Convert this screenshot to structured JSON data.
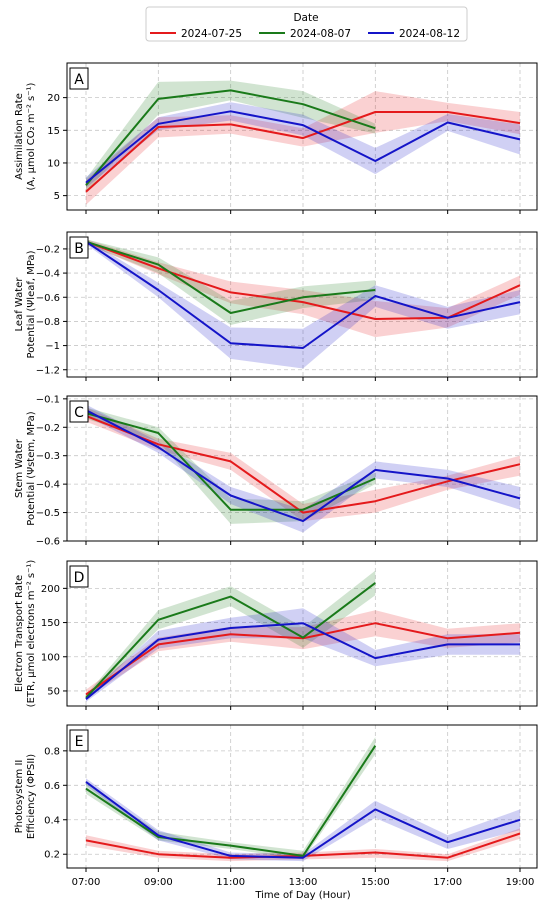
{
  "legend": {
    "title": "Date",
    "entries": [
      {
        "label": "2024-07-25",
        "color": "#e41a1c"
      },
      {
        "label": "2024-08-07",
        "color": "#1a7a1a"
      },
      {
        "label": "2024-08-12",
        "color": "#1414c8"
      }
    ]
  },
  "xlabel": "Time of Day (Hour)",
  "chart_data": [
    {
      "type": "line",
      "panel": "A",
      "ylabel": [
        "Assimilation Rate",
        "(A, μmol CO₂ m⁻² s⁻¹)"
      ],
      "x": [
        "07:00",
        "09:00",
        "11:00",
        "13:00",
        "15:00",
        "17:00",
        "19:00"
      ],
      "ylim": [
        2.8,
        25.3
      ],
      "yticks": [
        5,
        10,
        15,
        20
      ],
      "series": [
        {
          "name": "2024-07-25",
          "color": "#e41a1c",
          "values": [
            5.6,
            15.5,
            15.9,
            13.8,
            17.8,
            17.8,
            16.1
          ],
          "lower": [
            3.6,
            13.9,
            14.5,
            12.5,
            14.6,
            16.4,
            14.4
          ],
          "upper": [
            7.4,
            17.0,
            17.3,
            15.3,
            21.0,
            19.2,
            17.8
          ]
        },
        {
          "name": "2024-08-07",
          "color": "#1a7a1a",
          "values": [
            6.6,
            19.8,
            21.1,
            19.0,
            15.3,
            null,
            null
          ],
          "lower": [
            5.6,
            17.4,
            19.6,
            16.9,
            14.5,
            null,
            null
          ],
          "upper": [
            7.6,
            22.4,
            22.6,
            21.0,
            16.0,
            null,
            null
          ]
        },
        {
          "name": "2024-08-12",
          "color": "#1414c8",
          "values": [
            7.0,
            16.0,
            17.9,
            15.8,
            10.3,
            16.2,
            13.6
          ],
          "lower": [
            6.2,
            15.0,
            16.5,
            14.2,
            8.3,
            14.9,
            11.3
          ],
          "upper": [
            7.8,
            17.0,
            19.3,
            17.4,
            12.3,
            17.5,
            15.9
          ]
        }
      ]
    },
    {
      "type": "line",
      "panel": "B",
      "ylabel": [
        "Leaf Water",
        "Potential (Ψleaf, MPa)"
      ],
      "x": [
        "07:00",
        "09:00",
        "11:00",
        "13:00",
        "15:00",
        "17:00",
        "19:00"
      ],
      "ylim": [
        -1.26,
        -0.06
      ],
      "yticks": [
        -1.2,
        -1.0,
        -0.8,
        -0.6,
        -0.4,
        -0.2
      ],
      "series": [
        {
          "name": "2024-07-25",
          "color": "#e41a1c",
          "values": [
            -0.14,
            -0.36,
            -0.56,
            -0.64,
            -0.78,
            -0.77,
            -0.5
          ],
          "lower": [
            -0.16,
            -0.41,
            -0.65,
            -0.74,
            -0.93,
            -0.85,
            -0.58
          ],
          "upper": [
            -0.12,
            -0.31,
            -0.47,
            -0.54,
            -0.63,
            -0.69,
            -0.42
          ]
        },
        {
          "name": "2024-08-07",
          "color": "#1a7a1a",
          "values": [
            -0.14,
            -0.33,
            -0.73,
            -0.6,
            -0.54,
            null,
            null
          ],
          "lower": [
            -0.16,
            -0.4,
            -0.83,
            -0.69,
            -0.62,
            null,
            null
          ],
          "upper": [
            -0.12,
            -0.27,
            -0.63,
            -0.51,
            -0.46,
            null,
            null
          ]
        },
        {
          "name": "2024-08-12",
          "color": "#1414c8",
          "values": [
            -0.14,
            -0.54,
            -0.98,
            -1.02,
            -0.59,
            -0.77,
            -0.64
          ],
          "lower": [
            -0.16,
            -0.6,
            -1.11,
            -1.19,
            -0.68,
            -0.86,
            -0.74
          ],
          "upper": [
            -0.12,
            -0.48,
            -0.85,
            -0.86,
            -0.5,
            -0.68,
            -0.54
          ]
        }
      ]
    },
    {
      "type": "line",
      "panel": "C",
      "ylabel": [
        "Stem Water",
        "Potential (Ψstem, MPa)"
      ],
      "x": [
        "07:00",
        "09:00",
        "11:00",
        "13:00",
        "15:00",
        "17:00",
        "19:00"
      ],
      "ylim": [
        -0.6,
        -0.09
      ],
      "yticks": [
        -0.6,
        -0.5,
        -0.4,
        -0.3,
        -0.2,
        -0.1
      ],
      "series": [
        {
          "name": "2024-07-25",
          "color": "#e41a1c",
          "values": [
            -0.16,
            -0.26,
            -0.32,
            -0.5,
            -0.46,
            -0.39,
            -0.33
          ],
          "lower": [
            -0.18,
            -0.28,
            -0.35,
            -0.53,
            -0.5,
            -0.42,
            -0.37
          ],
          "upper": [
            -0.13,
            -0.24,
            -0.29,
            -0.47,
            -0.42,
            -0.37,
            -0.3
          ]
        },
        {
          "name": "2024-08-07",
          "color": "#1a7a1a",
          "values": [
            -0.15,
            -0.22,
            -0.49,
            -0.49,
            -0.38,
            null,
            null
          ],
          "lower": [
            -0.17,
            -0.25,
            -0.54,
            -0.53,
            -0.4,
            null,
            null
          ],
          "upper": [
            -0.13,
            -0.2,
            -0.45,
            -0.46,
            -0.36,
            null,
            null
          ]
        },
        {
          "name": "2024-08-12",
          "color": "#1414c8",
          "values": [
            -0.14,
            -0.27,
            -0.44,
            -0.53,
            -0.35,
            -0.38,
            -0.45
          ],
          "lower": [
            -0.16,
            -0.29,
            -0.47,
            -0.57,
            -0.38,
            -0.41,
            -0.49
          ],
          "upper": [
            -0.12,
            -0.25,
            -0.41,
            -0.49,
            -0.32,
            -0.35,
            -0.41
          ]
        }
      ]
    },
    {
      "type": "line",
      "panel": "D",
      "ylabel": [
        "Electron Transport Rate",
        "(ETR, μmol electrons m⁻² s⁻¹)"
      ],
      "x": [
        "07:00",
        "09:00",
        "11:00",
        "13:00",
        "15:00",
        "17:00",
        "19:00"
      ],
      "ylim": [
        28,
        240
      ],
      "yticks": [
        50,
        100,
        150,
        200
      ],
      "series": [
        {
          "name": "2024-07-25",
          "color": "#e41a1c",
          "values": [
            45,
            118,
            133,
            127,
            149,
            127,
            135
          ],
          "lower": [
            40,
            108,
            122,
            111,
            130,
            113,
            121
          ],
          "upper": [
            52,
            128,
            144,
            143,
            168,
            141,
            149
          ]
        },
        {
          "name": "2024-08-07",
          "color": "#1a7a1a",
          "values": [
            40,
            154,
            188,
            128,
            208,
            null,
            null
          ],
          "lower": [
            37,
            140,
            174,
            113,
            190,
            null,
            null
          ],
          "upper": [
            44,
            168,
            203,
            143,
            226,
            null,
            null
          ]
        },
        {
          "name": "2024-08-12",
          "color": "#1414c8",
          "values": [
            38,
            125,
            142,
            149,
            98,
            118,
            118
          ],
          "lower": [
            34,
            112,
            127,
            127,
            86,
            103,
            103
          ],
          "upper": [
            42,
            138,
            157,
            171,
            110,
            133,
            133
          ]
        }
      ]
    },
    {
      "type": "line",
      "panel": "E",
      "ylabel": [
        "Photosystem II",
        "Efficiency (ΦPSII)"
      ],
      "x": [
        "07:00",
        "09:00",
        "11:00",
        "13:00",
        "15:00",
        "17:00",
        "19:00"
      ],
      "ylim": [
        0.12,
        0.95
      ],
      "yticks": [
        0.2,
        0.4,
        0.6,
        0.8
      ],
      "series": [
        {
          "name": "2024-07-25",
          "color": "#e41a1c",
          "values": [
            0.28,
            0.2,
            0.18,
            0.19,
            0.21,
            0.18,
            0.32
          ],
          "lower": [
            0.25,
            0.18,
            0.16,
            0.17,
            0.18,
            0.16,
            0.29
          ],
          "upper": [
            0.31,
            0.22,
            0.2,
            0.21,
            0.23,
            0.2,
            0.35
          ]
        },
        {
          "name": "2024-08-07",
          "color": "#1a7a1a",
          "values": [
            0.58,
            0.3,
            0.25,
            0.19,
            0.83,
            null,
            null
          ],
          "lower": [
            0.55,
            0.28,
            0.23,
            0.17,
            0.78,
            null,
            null
          ],
          "upper": [
            0.61,
            0.33,
            0.27,
            0.22,
            0.88,
            null,
            null
          ]
        },
        {
          "name": "2024-08-12",
          "color": "#1414c8",
          "values": [
            0.62,
            0.31,
            0.19,
            0.18,
            0.46,
            0.27,
            0.4
          ],
          "lower": [
            0.6,
            0.28,
            0.17,
            0.16,
            0.41,
            0.23,
            0.34
          ],
          "upper": [
            0.64,
            0.34,
            0.21,
            0.2,
            0.51,
            0.31,
            0.46
          ]
        }
      ]
    }
  ]
}
